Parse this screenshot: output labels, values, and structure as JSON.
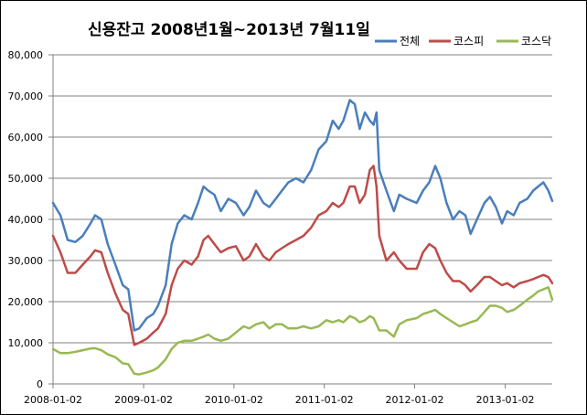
{
  "chart_data": {
    "type": "line",
    "title": "신용잔고 2008년1월~2013년 7월11일",
    "x_start": "2008-01-02",
    "x_end": "2013-07-11",
    "x_ticks": [
      "2008-01-02",
      "2009-01-02",
      "2010-01-02",
      "2011-01-02",
      "2012-01-02",
      "2013-01-02"
    ],
    "y_ticks": [
      "0",
      "10,000",
      "20,000",
      "30,000",
      "40,000",
      "50,000",
      "60,000",
      "70,000",
      "80,000"
    ],
    "ylim": [
      0,
      80000
    ],
    "grid": "horizontal",
    "legend_position": "top-right",
    "series": [
      {
        "name": "전체",
        "color": "#4a7ebb",
        "points": [
          [
            "2008-01-02",
            44000
          ],
          [
            "2008-02-01",
            41000
          ],
          [
            "2008-03-01",
            35000
          ],
          [
            "2008-04-01",
            34500
          ],
          [
            "2008-05-01",
            36000
          ],
          [
            "2008-06-01",
            39000
          ],
          [
            "2008-06-20",
            41000
          ],
          [
            "2008-07-15",
            40000
          ],
          [
            "2008-08-10",
            34000
          ],
          [
            "2008-09-10",
            29000
          ],
          [
            "2008-10-10",
            24000
          ],
          [
            "2008-11-01",
            23000
          ],
          [
            "2008-11-25",
            13000
          ],
          [
            "2008-12-15",
            13500
          ],
          [
            "2009-01-15",
            16000
          ],
          [
            "2009-02-10",
            17000
          ],
          [
            "2009-03-01",
            19000
          ],
          [
            "2009-04-01",
            24000
          ],
          [
            "2009-04-25",
            34000
          ],
          [
            "2009-05-20",
            39000
          ],
          [
            "2009-06-15",
            41000
          ],
          [
            "2009-07-15",
            40000
          ],
          [
            "2009-08-10",
            44000
          ],
          [
            "2009-09-01",
            48000
          ],
          [
            "2009-09-20",
            47000
          ],
          [
            "2009-10-15",
            46000
          ],
          [
            "2009-11-10",
            42000
          ],
          [
            "2009-12-10",
            45000
          ],
          [
            "2010-01-10",
            44000
          ],
          [
            "2010-02-10",
            41000
          ],
          [
            "2010-03-05",
            43000
          ],
          [
            "2010-04-01",
            47000
          ],
          [
            "2010-05-01",
            44000
          ],
          [
            "2010-05-25",
            43000
          ],
          [
            "2010-06-20",
            45000
          ],
          [
            "2010-07-15",
            47000
          ],
          [
            "2010-08-10",
            49000
          ],
          [
            "2010-09-10",
            50000
          ],
          [
            "2010-10-10",
            49000
          ],
          [
            "2010-11-10",
            52000
          ],
          [
            "2010-12-10",
            57000
          ],
          [
            "2011-01-10",
            59000
          ],
          [
            "2011-02-05",
            64000
          ],
          [
            "2011-03-01",
            62000
          ],
          [
            "2011-03-20",
            64000
          ],
          [
            "2011-04-15",
            69000
          ],
          [
            "2011-05-05",
            68000
          ],
          [
            "2011-05-25",
            62000
          ],
          [
            "2011-06-15",
            66000
          ],
          [
            "2011-07-05",
            64000
          ],
          [
            "2011-07-20",
            63000
          ],
          [
            "2011-08-01",
            66000
          ],
          [
            "2011-08-12",
            52000
          ],
          [
            "2011-09-10",
            47000
          ],
          [
            "2011-10-10",
            42000
          ],
          [
            "2011-11-01",
            46000
          ],
          [
            "2011-12-01",
            45000
          ],
          [
            "2012-01-10",
            44000
          ],
          [
            "2012-02-05",
            47000
          ],
          [
            "2012-03-01",
            49000
          ],
          [
            "2012-03-25",
            53000
          ],
          [
            "2012-04-15",
            50000
          ],
          [
            "2012-05-10",
            44000
          ],
          [
            "2012-06-05",
            40000
          ],
          [
            "2012-07-01",
            42000
          ],
          [
            "2012-07-25",
            41000
          ],
          [
            "2012-08-15",
            36500
          ],
          [
            "2012-09-10",
            40000
          ],
          [
            "2012-10-10",
            44000
          ],
          [
            "2012-11-01",
            45500
          ],
          [
            "2012-11-25",
            43000
          ],
          [
            "2012-12-20",
            39000
          ],
          [
            "2013-01-10",
            42000
          ],
          [
            "2013-02-05",
            41000
          ],
          [
            "2013-03-01",
            44000
          ],
          [
            "2013-04-01",
            45000
          ],
          [
            "2013-04-25",
            47000
          ],
          [
            "2013-05-15",
            48000
          ],
          [
            "2013-06-05",
            49000
          ],
          [
            "2013-06-25",
            47000
          ],
          [
            "2013-07-11",
            44500
          ]
        ]
      },
      {
        "name": "코스피",
        "color": "#be4b48",
        "points": [
          [
            "2008-01-02",
            36000
          ],
          [
            "2008-02-01",
            32000
          ],
          [
            "2008-03-01",
            27000
          ],
          [
            "2008-04-01",
            27000
          ],
          [
            "2008-05-01",
            29000
          ],
          [
            "2008-06-01",
            31000
          ],
          [
            "2008-06-20",
            32500
          ],
          [
            "2008-07-15",
            32000
          ],
          [
            "2008-08-10",
            27000
          ],
          [
            "2008-09-10",
            22000
          ],
          [
            "2008-10-10",
            18000
          ],
          [
            "2008-11-01",
            17000
          ],
          [
            "2008-11-25",
            9500
          ],
          [
            "2008-12-15",
            10000
          ],
          [
            "2009-01-15",
            11000
          ],
          [
            "2009-02-10",
            12500
          ],
          [
            "2009-03-01",
            13500
          ],
          [
            "2009-04-01",
            17000
          ],
          [
            "2009-04-25",
            24000
          ],
          [
            "2009-05-20",
            28000
          ],
          [
            "2009-06-15",
            30000
          ],
          [
            "2009-07-15",
            29000
          ],
          [
            "2009-08-10",
            31000
          ],
          [
            "2009-09-01",
            35000
          ],
          [
            "2009-09-20",
            36000
          ],
          [
            "2009-10-15",
            34000
          ],
          [
            "2009-11-10",
            32000
          ],
          [
            "2009-12-10",
            33000
          ],
          [
            "2010-01-10",
            33500
          ],
          [
            "2010-02-10",
            30000
          ],
          [
            "2010-03-05",
            31000
          ],
          [
            "2010-04-01",
            34000
          ],
          [
            "2010-05-01",
            31000
          ],
          [
            "2010-05-25",
            30000
          ],
          [
            "2010-06-20",
            32000
          ],
          [
            "2010-07-15",
            33000
          ],
          [
            "2010-08-10",
            34000
          ],
          [
            "2010-09-10",
            35000
          ],
          [
            "2010-10-10",
            36000
          ],
          [
            "2010-11-10",
            38000
          ],
          [
            "2010-12-10",
            41000
          ],
          [
            "2011-01-10",
            42000
          ],
          [
            "2011-02-05",
            44000
          ],
          [
            "2011-03-01",
            43000
          ],
          [
            "2011-03-20",
            44000
          ],
          [
            "2011-04-15",
            48000
          ],
          [
            "2011-05-05",
            48000
          ],
          [
            "2011-05-25",
            44000
          ],
          [
            "2011-06-15",
            46000
          ],
          [
            "2011-07-05",
            52000
          ],
          [
            "2011-07-20",
            53000
          ],
          [
            "2011-08-01",
            48000
          ],
          [
            "2011-08-12",
            36000
          ],
          [
            "2011-09-10",
            30000
          ],
          [
            "2011-10-10",
            32000
          ],
          [
            "2011-11-01",
            30000
          ],
          [
            "2011-12-01",
            28000
          ],
          [
            "2012-01-10",
            28000
          ],
          [
            "2012-02-05",
            32000
          ],
          [
            "2012-03-01",
            34000
          ],
          [
            "2012-03-25",
            33000
          ],
          [
            "2012-04-15",
            30000
          ],
          [
            "2012-05-10",
            27000
          ],
          [
            "2012-06-05",
            25000
          ],
          [
            "2012-07-01",
            25000
          ],
          [
            "2012-07-25",
            24000
          ],
          [
            "2012-08-15",
            22500
          ],
          [
            "2012-09-10",
            24000
          ],
          [
            "2012-10-10",
            26000
          ],
          [
            "2012-11-01",
            26000
          ],
          [
            "2012-11-25",
            25000
          ],
          [
            "2012-12-20",
            24000
          ],
          [
            "2013-01-10",
            24500
          ],
          [
            "2013-02-05",
            23500
          ],
          [
            "2013-03-01",
            24500
          ],
          [
            "2013-04-01",
            25000
          ],
          [
            "2013-04-25",
            25500
          ],
          [
            "2013-05-15",
            26000
          ],
          [
            "2013-06-05",
            26500
          ],
          [
            "2013-06-25",
            26000
          ],
          [
            "2013-07-11",
            24500
          ]
        ]
      },
      {
        "name": "코스닥",
        "color": "#98b954",
        "points": [
          [
            "2008-01-02",
            8500
          ],
          [
            "2008-02-01",
            7500
          ],
          [
            "2008-03-01",
            7500
          ],
          [
            "2008-04-01",
            7800
          ],
          [
            "2008-05-01",
            8200
          ],
          [
            "2008-06-01",
            8600
          ],
          [
            "2008-06-20",
            8700
          ],
          [
            "2008-07-15",
            8200
          ],
          [
            "2008-08-10",
            7200
          ],
          [
            "2008-09-10",
            6500
          ],
          [
            "2008-10-10",
            5000
          ],
          [
            "2008-11-01",
            4800
          ],
          [
            "2008-11-25",
            2500
          ],
          [
            "2008-12-15",
            2300
          ],
          [
            "2009-01-15",
            2800
          ],
          [
            "2009-02-10",
            3300
          ],
          [
            "2009-03-01",
            4000
          ],
          [
            "2009-04-01",
            6000
          ],
          [
            "2009-04-25",
            8500
          ],
          [
            "2009-05-20",
            10000
          ],
          [
            "2009-06-15",
            10500
          ],
          [
            "2009-07-15",
            10500
          ],
          [
            "2009-08-10",
            11000
          ],
          [
            "2009-09-01",
            11500
          ],
          [
            "2009-09-20",
            12000
          ],
          [
            "2009-10-15",
            11000
          ],
          [
            "2009-11-10",
            10500
          ],
          [
            "2009-12-10",
            11000
          ],
          [
            "2010-01-10",
            12500
          ],
          [
            "2010-02-10",
            14000
          ],
          [
            "2010-03-05",
            13500
          ],
          [
            "2010-04-01",
            14500
          ],
          [
            "2010-05-01",
            15000
          ],
          [
            "2010-05-25",
            13500
          ],
          [
            "2010-06-20",
            14500
          ],
          [
            "2010-07-15",
            14500
          ],
          [
            "2010-08-10",
            13500
          ],
          [
            "2010-09-10",
            13500
          ],
          [
            "2010-10-10",
            14000
          ],
          [
            "2010-11-10",
            13500
          ],
          [
            "2010-12-10",
            14000
          ],
          [
            "2011-01-10",
            15500
          ],
          [
            "2011-02-05",
            15000
          ],
          [
            "2011-03-01",
            15500
          ],
          [
            "2011-03-20",
            15000
          ],
          [
            "2011-04-15",
            16500
          ],
          [
            "2011-05-05",
            16000
          ],
          [
            "2011-05-25",
            15000
          ],
          [
            "2011-06-15",
            15500
          ],
          [
            "2011-07-05",
            16500
          ],
          [
            "2011-07-20",
            16000
          ],
          [
            "2011-08-01",
            14500
          ],
          [
            "2011-08-12",
            13000
          ],
          [
            "2011-09-10",
            13000
          ],
          [
            "2011-10-10",
            11500
          ],
          [
            "2011-11-01",
            14500
          ],
          [
            "2011-12-01",
            15500
          ],
          [
            "2012-01-10",
            16000
          ],
          [
            "2012-02-05",
            17000
          ],
          [
            "2012-03-01",
            17500
          ],
          [
            "2012-03-25",
            18000
          ],
          [
            "2012-04-15",
            17000
          ],
          [
            "2012-05-10",
            16000
          ],
          [
            "2012-06-05",
            15000
          ],
          [
            "2012-07-01",
            14000
          ],
          [
            "2012-07-25",
            14500
          ],
          [
            "2012-08-15",
            15000
          ],
          [
            "2012-09-10",
            15500
          ],
          [
            "2012-10-10",
            17500
          ],
          [
            "2012-11-01",
            19000
          ],
          [
            "2012-11-25",
            19000
          ],
          [
            "2012-12-20",
            18500
          ],
          [
            "2013-01-10",
            17500
          ],
          [
            "2013-02-05",
            18000
          ],
          [
            "2013-03-01",
            19000
          ],
          [
            "2013-04-01",
            20500
          ],
          [
            "2013-04-25",
            21500
          ],
          [
            "2013-05-15",
            22500
          ],
          [
            "2013-06-05",
            23000
          ],
          [
            "2013-06-25",
            23500
          ],
          [
            "2013-07-11",
            20500
          ]
        ]
      }
    ]
  }
}
